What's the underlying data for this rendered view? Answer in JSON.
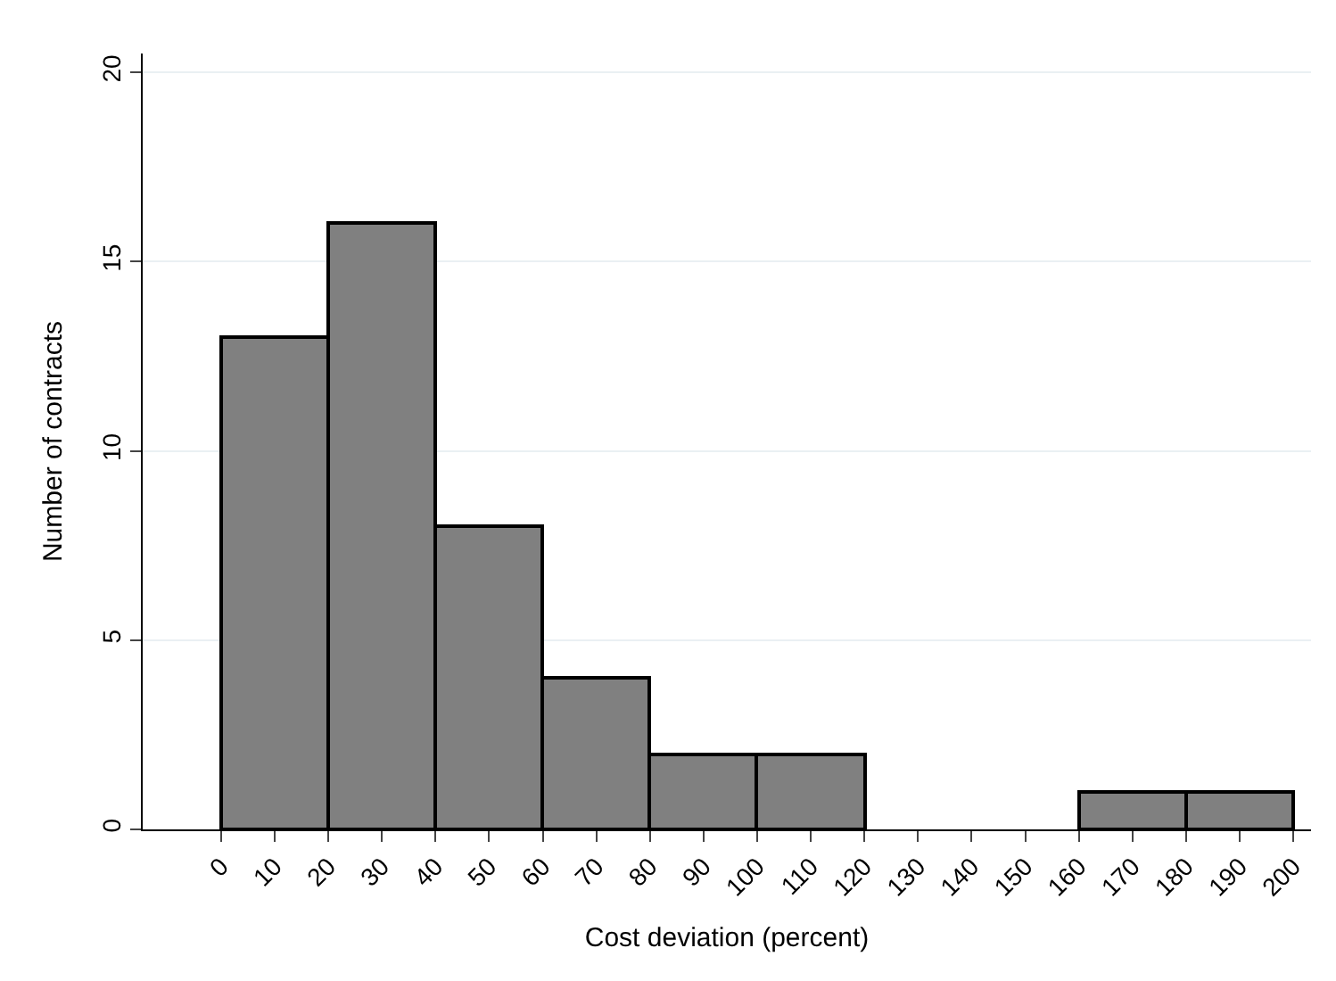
{
  "chart_data": {
    "type": "histogram",
    "xlabel": "Cost deviation (percent)",
    "ylabel": "Number of contracts",
    "bins": [
      0,
      20,
      40,
      60,
      80,
      100,
      120,
      140,
      160,
      180,
      200
    ],
    "values": [
      13,
      16,
      8,
      4,
      2,
      2,
      0,
      0,
      1,
      1
    ],
    "color": "#808080",
    "xlim": [
      -14.6,
      203.3
    ],
    "xticks": [
      0,
      10,
      20,
      30,
      40,
      50,
      60,
      70,
      80,
      90,
      100,
      110,
      120,
      130,
      140,
      150,
      160,
      170,
      180,
      190,
      200
    ],
    "ylim": [
      0,
      20.5
    ],
    "yticks": [
      0,
      5,
      10,
      15,
      20
    ],
    "grid": "y"
  }
}
